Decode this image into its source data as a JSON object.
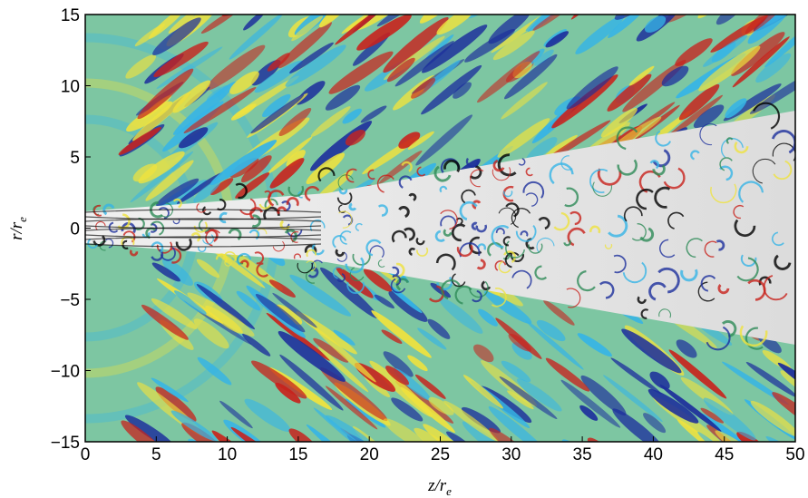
{
  "figure": {
    "xlabel": {
      "main": "z/r",
      "sub": "e"
    },
    "ylabel": {
      "main": "r/r",
      "sub": "e"
    },
    "x_ticks": [
      "0",
      "5",
      "10",
      "15",
      "20",
      "25",
      "30",
      "35",
      "40",
      "45",
      "50"
    ],
    "y_ticks": [
      "15",
      "10",
      "5",
      "0",
      "−5",
      "−10",
      "−15"
    ],
    "x_range": [
      0,
      50
    ],
    "y_range": [
      -15,
      15
    ],
    "colors": {
      "background": "#7dc6a2",
      "positive": "#c8221c",
      "negative": "#1d2f9c",
      "yellow": "#efe23e",
      "cyan": "#36b4e6",
      "jet_core": "#e8e8e8"
    },
    "wave_bands_icon": "acoustic-wave-field",
    "jet_core_icon": "turbulent-jet-core"
  }
}
